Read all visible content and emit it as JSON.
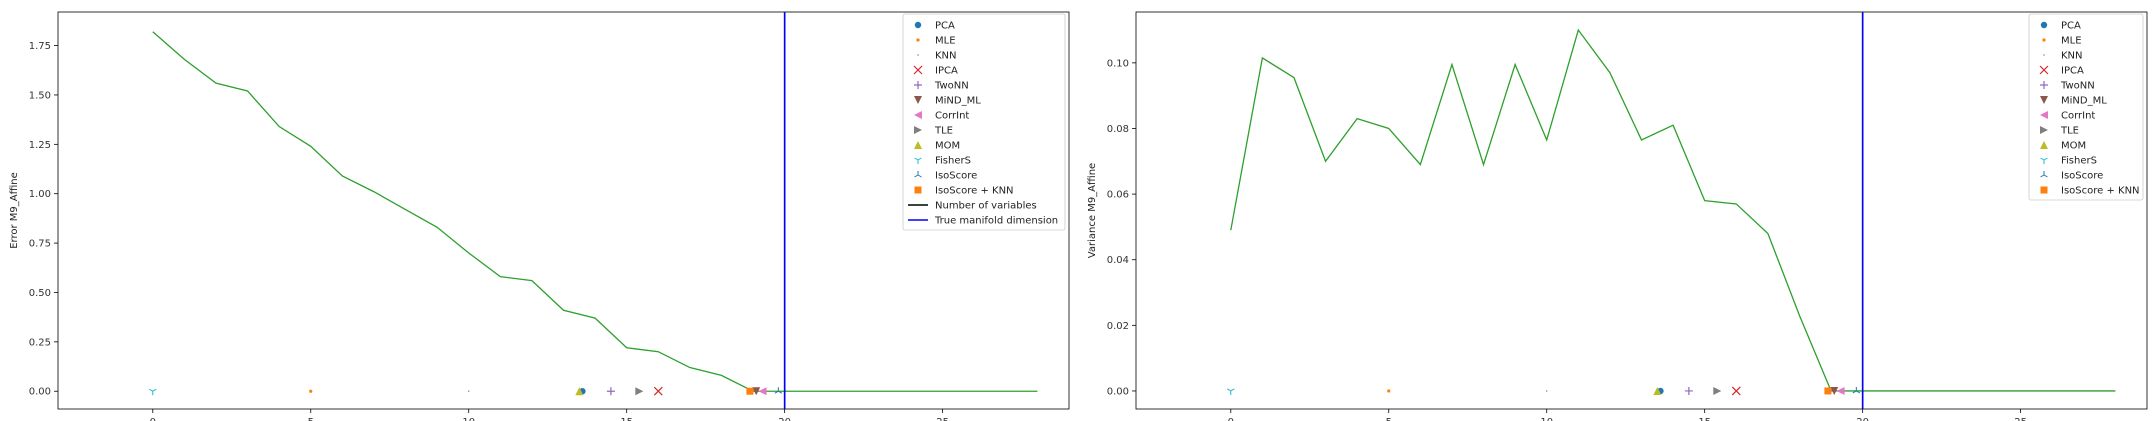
{
  "chart_data": [
    {
      "type": "line",
      "xlabel": "",
      "ylabel": "Error M9_Affine",
      "xlim": [
        -3,
        29
      ],
      "ylim": [
        -0.09,
        1.92
      ],
      "xticks": [
        0,
        5,
        10,
        15,
        20,
        25
      ],
      "yticks": [
        0.0,
        0.25,
        0.5,
        0.75,
        1.0,
        1.25,
        1.5,
        1.75
      ],
      "ytick_labels": [
        "0.00",
        "0.25",
        "0.50",
        "0.75",
        "1.00",
        "1.25",
        "1.50",
        "1.75"
      ],
      "grid": false,
      "legend_position": "top-right",
      "line_series": {
        "color": "#2ca02c",
        "x": [
          0,
          1,
          2,
          3,
          4,
          5,
          6,
          7,
          8,
          9,
          10,
          11,
          12,
          13,
          14,
          15,
          16,
          17,
          18,
          19,
          20,
          21,
          22,
          23,
          24,
          25,
          26,
          27,
          28
        ],
        "y": [
          1.82,
          1.68,
          1.56,
          1.52,
          1.34,
          1.24,
          1.09,
          1.01,
          0.92,
          0.83,
          0.7,
          0.58,
          0.56,
          0.41,
          0.37,
          0.22,
          0.2,
          0.12,
          0.08,
          0.0,
          0.0,
          0.0,
          0.0,
          0.0,
          0.0,
          0.0,
          0.0,
          0.0,
          0.0
        ]
      },
      "estimators": [
        {
          "name": "PCA",
          "x": 13.6,
          "y": 0,
          "marker": "circle",
          "color": "#1f77b4"
        },
        {
          "name": "MLE",
          "x": 5.0,
          "y": 0,
          "marker": "point",
          "color": "#ff7f0e"
        },
        {
          "name": "KNN",
          "x": 10.0,
          "y": 0,
          "marker": "pixel",
          "color": "#2ca02c"
        },
        {
          "name": "IPCA",
          "x": 16.0,
          "y": 0,
          "marker": "x",
          "color": "#d62728"
        },
        {
          "name": "TwoNN",
          "x": 14.5,
          "y": 0,
          "marker": "plus",
          "color": "#9467bd"
        },
        {
          "name": "MiND_ML",
          "x": 19.1,
          "y": 0,
          "marker": "triangle-down",
          "color": "#8c564b"
        },
        {
          "name": "CorrInt",
          "x": 19.3,
          "y": 0,
          "marker": "triangle-left",
          "color": "#e377c2"
        },
        {
          "name": "TLE",
          "x": 15.4,
          "y": 0,
          "marker": "triangle-right",
          "color": "#7f7f7f"
        },
        {
          "name": "MOM",
          "x": 13.5,
          "y": 0,
          "marker": "triangle-up",
          "color": "#bcbd22"
        },
        {
          "name": "FisherS",
          "x": 0.0,
          "y": 0,
          "marker": "tri-down",
          "color": "#17becf"
        },
        {
          "name": "IsoScore",
          "x": 19.8,
          "y": 0,
          "marker": "tri-up",
          "color": "#1f77b4"
        },
        {
          "name": "IsoScore + KNN",
          "x": 18.9,
          "y": 0,
          "marker": "square",
          "color": "#ff7f0e"
        }
      ],
      "reference_lines": [
        {
          "name": "Number of variables",
          "x": 20,
          "color": "#000000"
        },
        {
          "name": "True manifold dimension",
          "x": 20,
          "color": "#0000ff"
        }
      ]
    },
    {
      "type": "line",
      "xlabel": "",
      "ylabel": "Variance M9_Affine",
      "xlim": [
        -3,
        29
      ],
      "ylim": [
        -0.0055,
        0.1155
      ],
      "xticks": [
        0,
        5,
        10,
        15,
        20,
        25
      ],
      "yticks": [
        0.0,
        0.02,
        0.04,
        0.06,
        0.08,
        0.1
      ],
      "ytick_labels": [
        "0.00",
        "0.02",
        "0.04",
        "0.06",
        "0.08",
        "0.10"
      ],
      "grid": false,
      "legend_position": "top-right",
      "line_series": {
        "color": "#2ca02c",
        "x": [
          0,
          1,
          2,
          3,
          4,
          5,
          6,
          7,
          8,
          9,
          10,
          11,
          12,
          13,
          14,
          15,
          16,
          17,
          18,
          19,
          20,
          21,
          22,
          23,
          24,
          25,
          26,
          27,
          28
        ],
        "y": [
          0.049,
          0.1015,
          0.0955,
          0.07,
          0.083,
          0.08,
          0.069,
          0.0995,
          0.069,
          0.0995,
          0.0765,
          0.11,
          0.097,
          0.0765,
          0.081,
          0.058,
          0.057,
          0.048,
          0.023,
          0.0,
          0.0,
          0.0,
          0.0,
          0.0,
          0.0,
          0.0,
          0.0,
          0.0,
          0.0
        ]
      },
      "estimators": [
        {
          "name": "PCA",
          "x": 13.6,
          "y": 0,
          "marker": "circle",
          "color": "#1f77b4"
        },
        {
          "name": "MLE",
          "x": 5.0,
          "y": 0,
          "marker": "point",
          "color": "#ff7f0e"
        },
        {
          "name": "KNN",
          "x": 10.0,
          "y": 0,
          "marker": "pixel",
          "color": "#2ca02c"
        },
        {
          "name": "IPCA",
          "x": 16.0,
          "y": 0,
          "marker": "x",
          "color": "#d62728"
        },
        {
          "name": "TwoNN",
          "x": 14.5,
          "y": 0,
          "marker": "plus",
          "color": "#9467bd"
        },
        {
          "name": "MiND_ML",
          "x": 19.1,
          "y": 0,
          "marker": "triangle-down",
          "color": "#8c564b"
        },
        {
          "name": "CorrInt",
          "x": 19.3,
          "y": 0,
          "marker": "triangle-left",
          "color": "#e377c2"
        },
        {
          "name": "TLE",
          "x": 15.4,
          "y": 0,
          "marker": "triangle-right",
          "color": "#7f7f7f"
        },
        {
          "name": "MOM",
          "x": 13.5,
          "y": 0,
          "marker": "triangle-up",
          "color": "#bcbd22"
        },
        {
          "name": "FisherS",
          "x": 0.0,
          "y": 0,
          "marker": "tri-down",
          "color": "#17becf"
        },
        {
          "name": "IsoScore",
          "x": 19.8,
          "y": 0,
          "marker": "tri-up",
          "color": "#1f77b4"
        },
        {
          "name": "IsoScore + KNN",
          "x": 18.9,
          "y": 0,
          "marker": "square",
          "color": "#ff7f0e"
        }
      ],
      "reference_lines": [
        {
          "name": "Number of variables",
          "x": 20,
          "color": "#000000"
        },
        {
          "name": "True manifold dimension",
          "x": 20,
          "color": "#0000ff"
        }
      ]
    }
  ]
}
